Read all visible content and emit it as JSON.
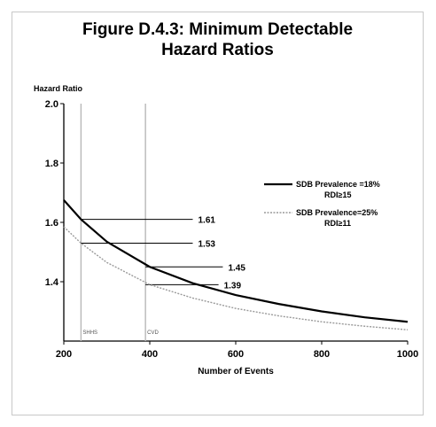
{
  "figure": {
    "title_line1": "Figure D.4.3: Minimum Detectable",
    "title_line2": "Hazard Ratios"
  },
  "chart_data": {
    "type": "line",
    "ylabel": "Hazard Ratio",
    "xlabel": "Number of Events",
    "xlim": [
      200,
      1000
    ],
    "ylim": [
      1.2,
      2.0
    ],
    "x_ticks": [
      200,
      400,
      600,
      800,
      1000
    ],
    "y_ticks": [
      {
        "value": 2.0,
        "label": "2.0"
      },
      {
        "value": 1.8,
        "label": "1.8"
      },
      {
        "value": 1.6,
        "label": "1.6"
      },
      {
        "value": 1.4,
        "label": "1.4"
      }
    ],
    "grid": false,
    "legend_position": "right",
    "series": [
      {
        "name": "SDB Prevalence =18%",
        "name_line2": "RDI≥15",
        "style": "solid",
        "color": "#000000",
        "x": [
          200,
          240,
          300,
          400,
          500,
          600,
          700,
          800,
          900,
          1000
        ],
        "y": [
          1.675,
          1.61,
          1.535,
          1.45,
          1.395,
          1.355,
          1.325,
          1.3,
          1.28,
          1.265
        ]
      },
      {
        "name": "SDB Prevalence=25%",
        "name_line2": "RDI≥11",
        "style": "dotted",
        "color": "#9a9a9a",
        "x": [
          200,
          240,
          300,
          400,
          500,
          600,
          700,
          800,
          900,
          1000
        ],
        "y": [
          1.585,
          1.53,
          1.465,
          1.39,
          1.345,
          1.31,
          1.285,
          1.265,
          1.25,
          1.238
        ]
      }
    ],
    "vertical_markers": [
      {
        "x": 240,
        "label": "SHHS"
      },
      {
        "x": 390,
        "label": "CVD"
      }
    ],
    "annotations": [
      {
        "label": "1.61",
        "y": 1.61,
        "x_from": 240,
        "x_to": 500
      },
      {
        "label": "1.53",
        "y": 1.53,
        "x_from": 240,
        "x_to": 500
      },
      {
        "label": "1.45",
        "y": 1.45,
        "x_from": 390,
        "x_to": 570
      },
      {
        "label": "1.39",
        "y": 1.39,
        "x_from": 390,
        "x_to": 560
      }
    ]
  }
}
